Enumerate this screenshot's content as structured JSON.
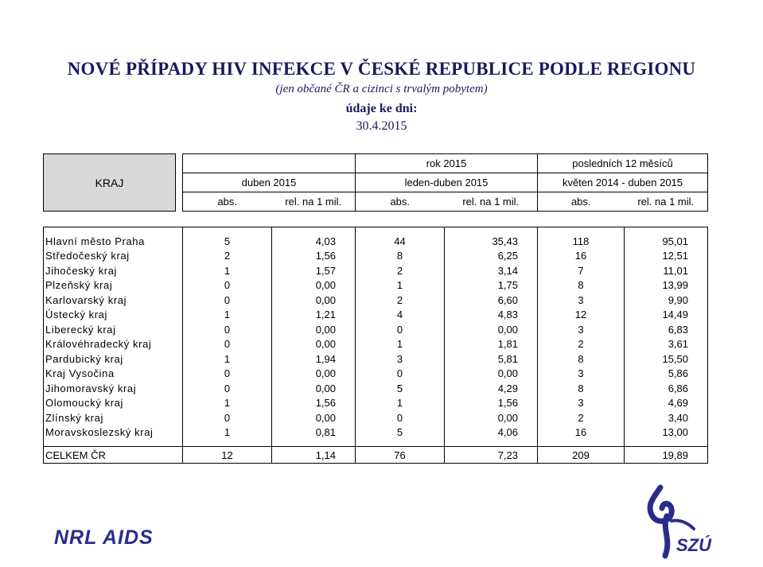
{
  "heading": {
    "title": "NOVÉ PŘÍPADY HIV INFEKCE V ČESKÉ REPUBLICE PODLE REGIONU",
    "subtitle": "(jen občané ČR a cizinci s trvalým pobytem)",
    "date_label": "údaje ke dni:",
    "date_value": "30.4.2015"
  },
  "table": {
    "kraj_header": "KRAJ",
    "group_headers": [
      "rok 2015",
      "posledních 12 měsíců"
    ],
    "period_headers": [
      "duben 2015",
      "leden-duben 2015",
      "květen 2014 - duben 2015"
    ],
    "sub_headers": [
      "abs.",
      "rel. na 1 mil.",
      "abs.",
      "rel. na 1 mil.",
      "abs.",
      "rel. na 1 mil."
    ],
    "rows": [
      {
        "region": "Hlavní město Praha",
        "values": [
          "5",
          "4,03",
          "44",
          "35,43",
          "118",
          "95,01"
        ]
      },
      {
        "region": "Středočeský kraj",
        "values": [
          "2",
          "1,56",
          "8",
          "6,25",
          "16",
          "12,51"
        ]
      },
      {
        "region": "Jihočeský kraj",
        "values": [
          "1",
          "1,57",
          "2",
          "3,14",
          "7",
          "11,01"
        ]
      },
      {
        "region": "Plzeňský kraj",
        "values": [
          "0",
          "0,00",
          "1",
          "1,75",
          "8",
          "13,99"
        ]
      },
      {
        "region": "Karlovarský kraj",
        "values": [
          "0",
          "0,00",
          "2",
          "6,60",
          "3",
          "9,90"
        ]
      },
      {
        "region": "Ústecký kraj",
        "values": [
          "1",
          "1,21",
          "4",
          "4,83",
          "12",
          "14,49"
        ]
      },
      {
        "region": "Liberecký kraj",
        "values": [
          "0",
          "0,00",
          "0",
          "0,00",
          "3",
          "6,83"
        ]
      },
      {
        "region": "Královéhradecký kraj",
        "values": [
          "0",
          "0,00",
          "1",
          "1,81",
          "2",
          "3,61"
        ]
      },
      {
        "region": "Pardubický kraj",
        "values": [
          "1",
          "1,94",
          "3",
          "5,81",
          "8",
          "15,50"
        ]
      },
      {
        "region": "Kraj Vysočina",
        "values": [
          "0",
          "0,00",
          "0",
          "0,00",
          "3",
          "5,86"
        ]
      },
      {
        "region": "Jihomoravský kraj",
        "values": [
          "0",
          "0,00",
          "5",
          "4,29",
          "8",
          "6,86"
        ]
      },
      {
        "region": "Olomoucký kraj",
        "values": [
          "1",
          "1,56",
          "1",
          "1,56",
          "3",
          "4,69"
        ]
      },
      {
        "region": "Zlínský kraj",
        "values": [
          "0",
          "0,00",
          "0",
          "0,00",
          "2",
          "3,40"
        ]
      },
      {
        "region": "Moravskoslezský kraj",
        "values": [
          "1",
          "0,81",
          "5",
          "4,06",
          "16",
          "13,00"
        ]
      }
    ],
    "total": {
      "region": "CELKEM ČR",
      "values": [
        "12",
        "1,14",
        "76",
        "7,23",
        "209",
        "19,89"
      ]
    }
  },
  "logos": {
    "nrl": "NRL AIDS",
    "szu": "SZÚ",
    "accent_color": "#2b2b8c"
  }
}
